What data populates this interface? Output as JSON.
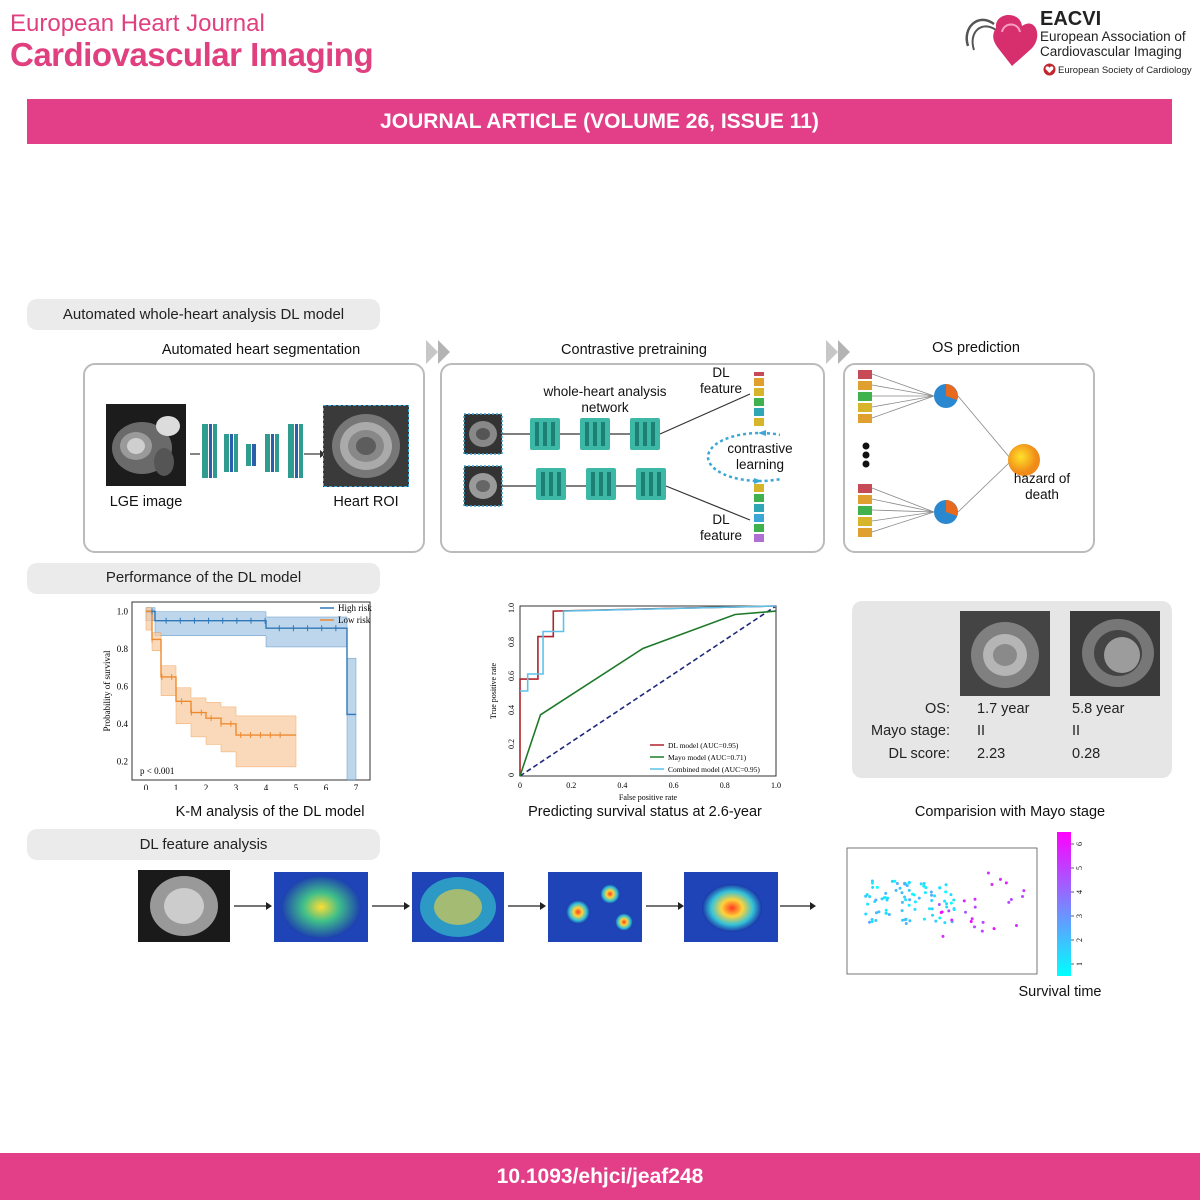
{
  "header": {
    "journal_line1": "European Heart Journal",
    "journal_line2": "Cardiovascular Imaging",
    "org_abbr": "EACVI",
    "org_line1": "European Association of",
    "org_line2": "Cardiovascular Imaging",
    "esc": "European Society of Cardiology"
  },
  "banner": "JOURNAL ARTICLE (VOLUME 26, ISSUE 11)",
  "sections": {
    "s1": "Automated whole-heart analysis DL model",
    "s2": "Performance of the DL model",
    "s3": "DL feature analysis"
  },
  "pipeline": {
    "seg_title": "Automated heart segmentation",
    "pre_title": "Contrastive pretraining",
    "os_title": "OS prediction",
    "lge": "LGE image",
    "roi": "Heart ROI",
    "net_l1": "whole-heart analysis",
    "net_l2": "network",
    "dl1": "DL",
    "feat1": "feature",
    "dl2": "DL",
    "feat2": "feature",
    "cl1": "contrastive",
    "cl2": "learning",
    "hz1": "hazard of",
    "hz2": "death"
  },
  "km": {
    "caption": "K-M analysis of the DL model",
    "ylabel": "Probability of survival",
    "legend_high": "High risk",
    "legend_low": "Low risk",
    "pval": "p < 0.001",
    "xticks": [
      "0",
      "1",
      "2",
      "3",
      "4",
      "5",
      "6",
      "7"
    ],
    "yticks": [
      "0.2",
      "0.4",
      "0.6",
      "0.8",
      "1.0"
    ]
  },
  "roc": {
    "caption": "Predicting survival status at 2.6-year",
    "xlabel": "False positive rate",
    "ylabel": "True positive rate",
    "xticks": [
      "0",
      "0.2",
      "0.4",
      "0.6",
      "0.8",
      "1.0"
    ],
    "yticks": [
      "0",
      "0.2",
      "0.4",
      "0.6",
      "0.8",
      "1.0"
    ],
    "leg1": "DL model (AUC=0.95)",
    "leg2": "Mayo model (AUC=0.71)",
    "leg3": "Combined model (AUC=0.95)"
  },
  "mayo": {
    "caption": "Comparision with Mayo stage",
    "os_label": "OS:",
    "stage_label": "Mayo stage:",
    "score_label": "DL score:",
    "p1": {
      "os": "1.7 year",
      "stage": "II",
      "score": "2.23"
    },
    "p2": {
      "os": "5.8 year",
      "stage": "II",
      "score": "0.28"
    }
  },
  "scatter": {
    "caption": "Survival time",
    "cbar_ticks": [
      "1",
      "2",
      "3",
      "4",
      "5",
      "6"
    ]
  },
  "footer": "10.1093/ehjci/jeaf248",
  "colors": {
    "brand": "#e33f89",
    "high_risk": "#2f78b8",
    "low_risk": "#ee8a2e"
  },
  "chart_data": [
    {
      "type": "line",
      "title": "K-M analysis of the DL model",
      "ylabel": "Probability of survival",
      "xlim": [
        0,
        7
      ],
      "ylim": [
        0.1,
        1.05
      ],
      "series": [
        {
          "name": "High risk",
          "x": [
            0,
            0.3,
            4.0,
            6.6,
            6.7,
            7.0
          ],
          "y": [
            1.0,
            0.95,
            0.91,
            0.91,
            0.45,
            0.45
          ]
        },
        {
          "name": "Low risk",
          "x": [
            0,
            0.2,
            0.5,
            1.0,
            1.5,
            2.0,
            2.5,
            3.0,
            5.0
          ],
          "y": [
            1.0,
            0.85,
            0.65,
            0.52,
            0.46,
            0.43,
            0.4,
            0.34,
            0.34
          ]
        }
      ]
    },
    {
      "type": "line",
      "title": "Predicting survival status at 2.6-year",
      "xlabel": "False positive rate",
      "ylabel": "True positive rate",
      "xlim": [
        0,
        1
      ],
      "ylim": [
        0,
        1
      ],
      "series": [
        {
          "name": "DL model (AUC=0.95)",
          "x": [
            0,
            0,
            0.07,
            0.07,
            0.13,
            0.13,
            1.0
          ],
          "y": [
            0,
            0.57,
            0.57,
            0.82,
            0.82,
            0.97,
            1.0
          ]
        },
        {
          "name": "Mayo model (AUC=0.71)",
          "x": [
            0,
            0.08,
            0.48,
            0.84,
            1.0
          ],
          "y": [
            0,
            0.36,
            0.75,
            0.95,
            0.97
          ]
        },
        {
          "name": "Combined model (AUC=0.95)",
          "x": [
            0,
            0.03,
            0.03,
            0.09,
            0.09,
            0.17,
            0.17,
            1.0
          ],
          "y": [
            0.5,
            0.5,
            0.6,
            0.6,
            0.85,
            0.85,
            0.97,
            1.0
          ]
        }
      ]
    },
    {
      "type": "scatter",
      "title": "Comparision with Mayo stage",
      "colorbar": "Survival time",
      "colorbar_range": [
        0.5,
        6.5
      ]
    }
  ]
}
